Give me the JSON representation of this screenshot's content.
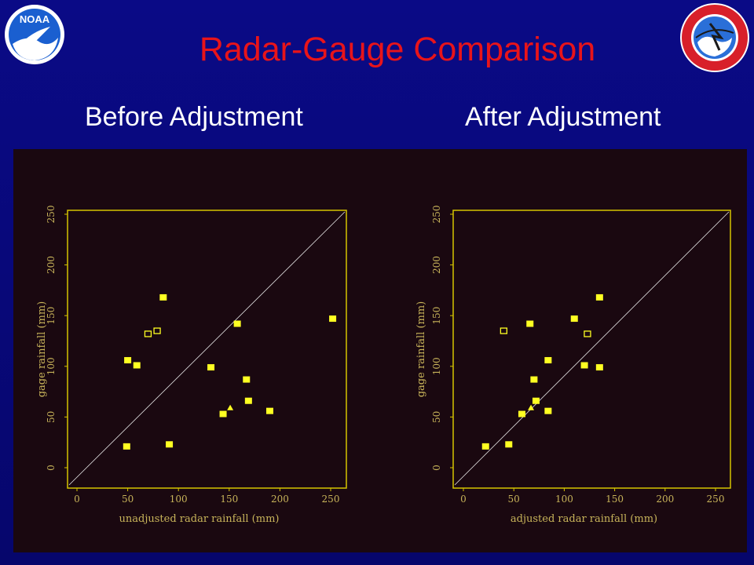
{
  "header": {
    "title": "Radar-Gauge Comparison",
    "subtitle_left": "Before Adjustment",
    "subtitle_right": "After Adjustment",
    "logo_left_text": "NOAA",
    "logo_right_text": "NATIONAL WEATHER SERVICE"
  },
  "colors": {
    "background": "#0a0a86",
    "title": "#e8141a",
    "panel": "#1a0810",
    "frame": "#d4c400",
    "marker": "#ffff22"
  },
  "chart_data": [
    {
      "type": "scatter",
      "title": "Before Adjustment",
      "xlabel": "unadjusted radar rainfall (mm)",
      "ylabel": "gage rainfall (mm)",
      "xlim": [
        0,
        250
      ],
      "ylim": [
        0,
        250
      ],
      "xticks": [
        "0",
        "50",
        "100",
        "150",
        "200",
        "250"
      ],
      "yticks": [
        "0",
        "50",
        "100",
        "150",
        "200",
        "250"
      ],
      "reference_line": "1:1 diagonal",
      "grid": false,
      "points": [
        {
          "x": 85,
          "y": 168,
          "marker": "square"
        },
        {
          "x": 70,
          "y": 132,
          "marker": "open-square"
        },
        {
          "x": 79,
          "y": 135,
          "marker": "open-square"
        },
        {
          "x": 50,
          "y": 106,
          "marker": "square"
        },
        {
          "x": 59,
          "y": 101,
          "marker": "square"
        },
        {
          "x": 49,
          "y": 21,
          "marker": "square"
        },
        {
          "x": 91,
          "y": 23,
          "marker": "square"
        },
        {
          "x": 132,
          "y": 99,
          "marker": "square"
        },
        {
          "x": 158,
          "y": 142,
          "marker": "square"
        },
        {
          "x": 167,
          "y": 87,
          "marker": "square"
        },
        {
          "x": 169,
          "y": 66,
          "marker": "square"
        },
        {
          "x": 151,
          "y": 59,
          "marker": "triangle"
        },
        {
          "x": 144,
          "y": 53,
          "marker": "square"
        },
        {
          "x": 190,
          "y": 56,
          "marker": "square"
        },
        {
          "x": 252,
          "y": 147,
          "marker": "square"
        }
      ]
    },
    {
      "type": "scatter",
      "title": "After Adjustment",
      "xlabel": "adjusted radar rainfall (mm)",
      "ylabel": "gage rainfall (mm)",
      "xlim": [
        0,
        250
      ],
      "ylim": [
        0,
        250
      ],
      "xticks": [
        "0",
        "50",
        "100",
        "150",
        "200",
        "250"
      ],
      "yticks": [
        "0",
        "50",
        "100",
        "150",
        "200",
        "250"
      ],
      "reference_line": "1:1 diagonal",
      "grid": false,
      "points": [
        {
          "x": 135,
          "y": 168,
          "marker": "square"
        },
        {
          "x": 40,
          "y": 135,
          "marker": "open-square"
        },
        {
          "x": 123,
          "y": 132,
          "marker": "open-square"
        },
        {
          "x": 66,
          "y": 142,
          "marker": "square"
        },
        {
          "x": 110,
          "y": 147,
          "marker": "square"
        },
        {
          "x": 84,
          "y": 106,
          "marker": "square"
        },
        {
          "x": 120,
          "y": 101,
          "marker": "square"
        },
        {
          "x": 135,
          "y": 99,
          "marker": "square"
        },
        {
          "x": 70,
          "y": 87,
          "marker": "square"
        },
        {
          "x": 72,
          "y": 66,
          "marker": "square"
        },
        {
          "x": 67,
          "y": 59,
          "marker": "triangle"
        },
        {
          "x": 58,
          "y": 53,
          "marker": "square"
        },
        {
          "x": 84,
          "y": 56,
          "marker": "square"
        },
        {
          "x": 22,
          "y": 21,
          "marker": "square"
        },
        {
          "x": 45,
          "y": 23,
          "marker": "square"
        }
      ]
    }
  ]
}
